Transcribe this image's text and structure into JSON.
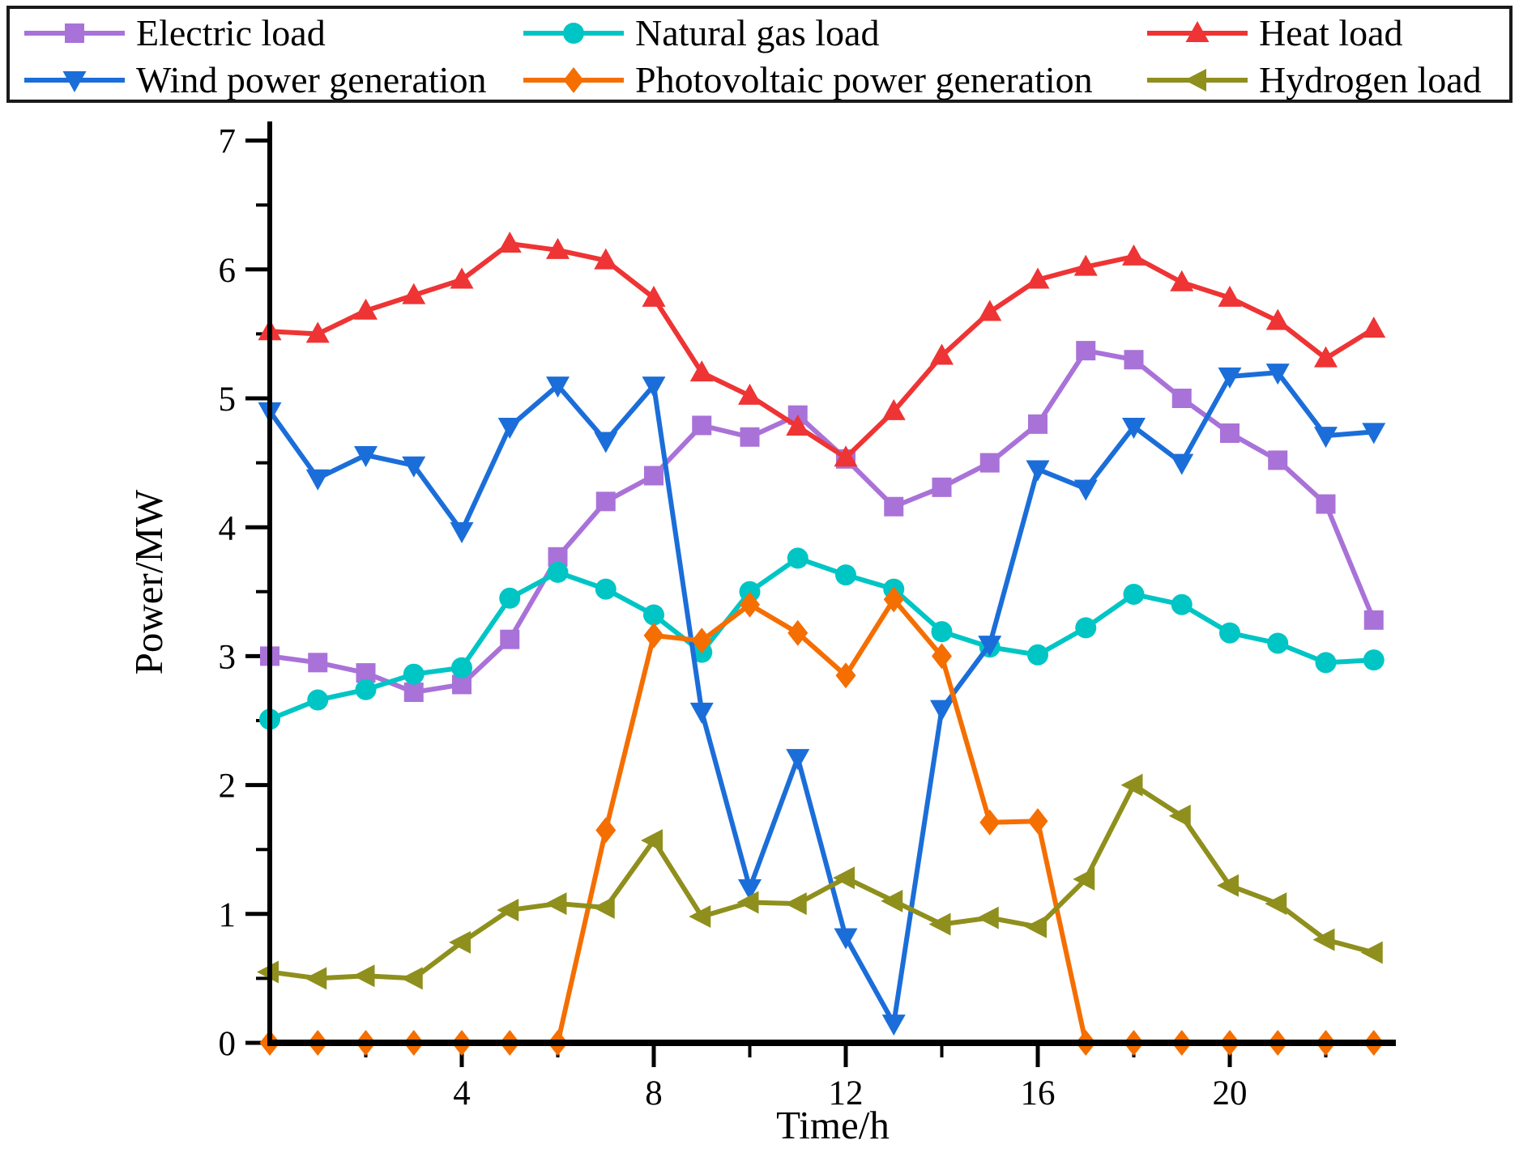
{
  "colors": {
    "background": "#ffffff",
    "axis": "#000000",
    "legend_border": "#1a1a1a"
  },
  "chart_data": {
    "type": "line",
    "title": "",
    "xlabel": "Time/h",
    "ylabel": "Power/MW",
    "x_hours": [
      0,
      1,
      2,
      3,
      4,
      5,
      6,
      7,
      8,
      9,
      10,
      11,
      12,
      13,
      14,
      15,
      16,
      17,
      18,
      19,
      20,
      21,
      22,
      23
    ],
    "xlim": [
      0,
      23.5
    ],
    "ylim": [
      0,
      7.15
    ],
    "x_major_ticks": [
      4,
      8,
      12,
      16,
      20
    ],
    "x_minor_ticks": [
      2,
      6,
      10,
      14,
      18,
      22
    ],
    "y_major_ticks": [
      0,
      1,
      2,
      3,
      4,
      5,
      6,
      7
    ],
    "y_minor_ticks": [
      0.5,
      1.5,
      2.5,
      3.5,
      4.5,
      5.5,
      6.5
    ],
    "grid": false,
    "legend_position": "top",
    "series": [
      {
        "name": "Electric load",
        "color": "#a972d8",
        "marker": "square",
        "values": [
          3.0,
          2.95,
          2.87,
          2.72,
          2.78,
          3.13,
          3.77,
          4.2,
          4.4,
          4.79,
          4.7,
          4.87,
          4.53,
          4.16,
          4.31,
          4.5,
          4.8,
          5.37,
          5.3,
          5.0,
          4.73,
          4.52,
          4.18,
          3.28
        ]
      },
      {
        "name": "Natural gas load",
        "color": "#00c5c5",
        "marker": "circle",
        "values": [
          2.51,
          2.66,
          2.74,
          2.86,
          2.91,
          3.45,
          3.65,
          3.52,
          3.32,
          3.03,
          3.5,
          3.76,
          3.63,
          3.52,
          3.19,
          3.07,
          3.01,
          3.22,
          3.48,
          3.4,
          3.18,
          3.1,
          2.95,
          2.97
        ]
      },
      {
        "name": "Heat load",
        "color": "#ee3434",
        "marker": "triangle-up",
        "values": [
          5.52,
          5.5,
          5.68,
          5.8,
          5.92,
          6.2,
          6.15,
          6.07,
          5.78,
          5.2,
          5.02,
          4.78,
          4.54,
          4.9,
          5.33,
          5.67,
          5.92,
          6.02,
          6.1,
          5.9,
          5.78,
          5.6,
          5.31,
          5.54
        ]
      },
      {
        "name": "Wind power generation",
        "color": "#1b6ed9",
        "marker": "triangle-down",
        "values": [
          4.9,
          4.38,
          4.56,
          4.48,
          3.97,
          4.78,
          5.1,
          4.67,
          5.1,
          2.57,
          1.2,
          2.21,
          0.82,
          0.15,
          2.59,
          3.09,
          4.45,
          4.3,
          4.78,
          4.5,
          5.17,
          5.2,
          4.71,
          4.74
        ]
      },
      {
        "name": "Photovoltaic power generation",
        "color": "#f56e00",
        "marker": "diamond",
        "values": [
          0,
          0,
          0,
          0,
          0,
          0,
          0,
          1.65,
          3.16,
          3.12,
          3.4,
          3.18,
          2.85,
          3.44,
          3.0,
          1.71,
          1.72,
          0,
          0,
          0,
          0,
          0,
          0,
          0
        ]
      },
      {
        "name": "Hydrogen load",
        "color": "#8f8f1d",
        "marker": "triangle-left",
        "values": [
          0.55,
          0.5,
          0.52,
          0.5,
          0.78,
          1.03,
          1.08,
          1.05,
          1.57,
          0.98,
          1.09,
          1.08,
          1.28,
          1.1,
          0.92,
          0.97,
          0.9,
          1.27,
          2.0,
          1.76,
          1.22,
          1.08,
          0.8,
          0.7
        ]
      }
    ]
  }
}
